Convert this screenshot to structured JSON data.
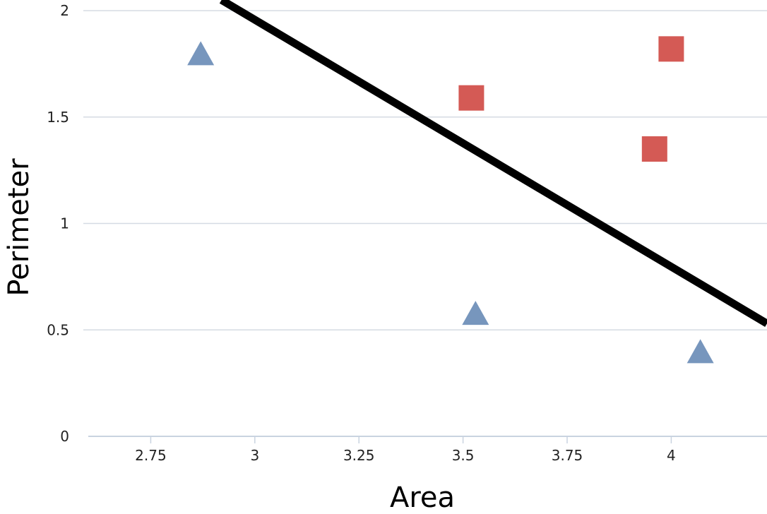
{
  "chart_data": {
    "type": "scatter",
    "xlabel": "Area",
    "ylabel": "Perimeter",
    "xlim": [
      2.6,
      4.23
    ],
    "ylim": [
      0,
      2.05
    ],
    "x_ticks": [
      "2.75",
      "3",
      "3.25",
      "3.5",
      "3.75",
      "4"
    ],
    "y_ticks": [
      "0",
      "0.5",
      "1",
      "1.5",
      "2"
    ],
    "grid": "horizontal",
    "series": [
      {
        "marker": "triangle",
        "color": "#7796bd",
        "points": [
          {
            "x": 2.87,
            "y": 1.8
          },
          {
            "x": 3.53,
            "y": 0.58
          },
          {
            "x": 4.07,
            "y": 0.4
          }
        ]
      },
      {
        "marker": "square",
        "color": "#d45a55",
        "points": [
          {
            "x": 3.52,
            "y": 1.59
          },
          {
            "x": 4.0,
            "y": 1.82
          },
          {
            "x": 3.96,
            "y": 1.35
          }
        ]
      }
    ],
    "line": {
      "color": "#000000",
      "from": {
        "x": 2.92,
        "y": 2.05
      },
      "to": {
        "x": 4.23,
        "y": 0.53
      }
    }
  }
}
